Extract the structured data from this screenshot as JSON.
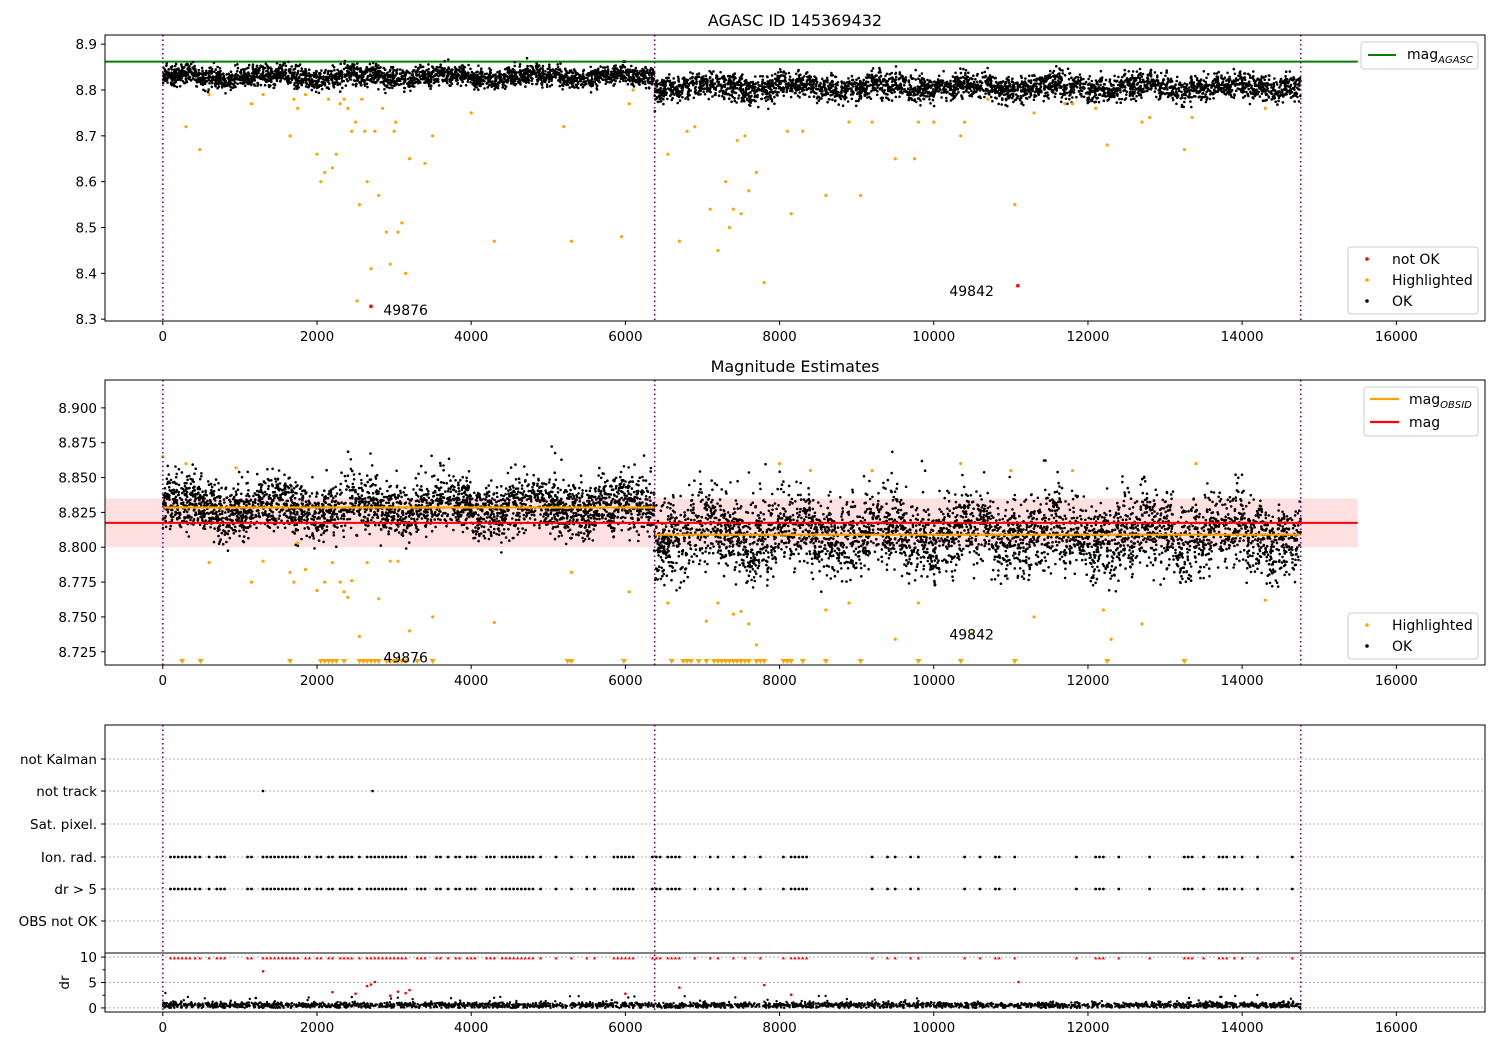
{
  "colors": {
    "ok": "#000000",
    "highlighted": "#ffa500",
    "not_ok": "#ff0000",
    "agasc_line": "#008000",
    "mag_line": "#ff0000",
    "obsid_line": "#ffa500",
    "band": "#ffcccc",
    "separator": "#800080",
    "flag_grid": "#b0b0b0"
  },
  "chart_data": [
    {
      "id": "agasc",
      "type": "scatter",
      "title": "AGASC ID 145369432",
      "xlim": [
        -750,
        17150
      ],
      "ylim": [
        8.296,
        8.92
      ],
      "xticks": [
        0,
        2000,
        4000,
        6000,
        8000,
        10000,
        12000,
        14000,
        16000
      ],
      "yticks": [
        8.3,
        8.4,
        8.5,
        8.6,
        8.7,
        8.8,
        8.9
      ],
      "ytick_decimals": 1,
      "obs_boundaries": [
        0,
        6380,
        14760
      ],
      "hline": {
        "name": "mag_AGASC",
        "y": 8.862,
        "x": [
          -750,
          15500
        ]
      },
      "legend_lines": [
        {
          "label": "mag",
          "sub": "AGASC",
          "color": "#008000"
        }
      ],
      "legend_points": [
        {
          "label": "not OK",
          "color": "#ff0000"
        },
        {
          "label": "Highlighted",
          "color": "#ffa500"
        },
        {
          "label": "OK",
          "color": "#000000"
        }
      ],
      "series": [
        {
          "name": "OK",
          "kind": "ok",
          "segments": [
            {
              "x0": 0,
              "x1": 6380,
              "center": 8.829,
              "spread": 0.011,
              "n": 2600,
              "seed": 3
            },
            {
              "x0": 6380,
              "x1": 14760,
              "center": 8.807,
              "spread": 0.014,
              "n": 3200,
              "seed": 7
            }
          ]
        },
        {
          "name": "Highlighted",
          "kind": "outliers",
          "seed": 11,
          "x": [
            300,
            480,
            600,
            1150,
            1300,
            1650,
            1700,
            1750,
            1850,
            2000,
            2050,
            2100,
            2150,
            2200,
            2250,
            2300,
            2350,
            2400,
            2450,
            2500,
            2520,
            2550,
            2580,
            2620,
            2650,
            2700,
            2750,
            2800,
            2850,
            2900,
            2950,
            3000,
            3020,
            3050,
            3100,
            3150,
            3200,
            3400,
            3500,
            4000,
            4300,
            5200,
            5300,
            5950,
            6050,
            6100,
            6550,
            6700,
            6800,
            6900,
            7100,
            7200,
            7300,
            7350,
            7400,
            7450,
            7500,
            7550,
            7600,
            7700,
            7800,
            8100,
            8150,
            8300,
            8600,
            8900,
            9050,
            9200,
            9500,
            9750,
            9800,
            10000,
            10350,
            10400,
            10700,
            11050,
            11300,
            11700,
            11800,
            12100,
            12250,
            12700,
            12800,
            13250,
            13350,
            14300
          ],
          "y": [
            8.72,
            8.67,
            8.79,
            8.77,
            8.79,
            8.7,
            8.78,
            8.76,
            8.79,
            8.66,
            8.6,
            8.62,
            8.78,
            8.63,
            8.66,
            8.77,
            8.78,
            8.76,
            8.71,
            8.73,
            8.34,
            8.55,
            8.78,
            8.71,
            8.6,
            8.41,
            8.71,
            8.57,
            8.76,
            8.49,
            8.42,
            8.71,
            8.73,
            8.49,
            8.51,
            8.4,
            8.65,
            8.64,
            8.7,
            8.75,
            8.47,
            8.72,
            8.47,
            8.48,
            8.77,
            8.8,
            8.66,
            8.47,
            8.71,
            8.72,
            8.54,
            8.45,
            8.6,
            8.5,
            8.54,
            8.69,
            8.53,
            8.7,
            8.58,
            8.62,
            8.38,
            8.71,
            8.53,
            8.71,
            8.57,
            8.73,
            8.57,
            8.73,
            8.65,
            8.65,
            8.73,
            8.73,
            8.7,
            8.73,
            8.78,
            8.55,
            8.75,
            8.77,
            8.77,
            8.76,
            8.68,
            8.73,
            8.74,
            8.67,
            8.74,
            8.76
          ]
        },
        {
          "name": "not OK",
          "kind": "points",
          "x": [
            2700,
            11090
          ],
          "y": [
            8.328,
            8.373
          ]
        }
      ],
      "annotations": [
        {
          "text": "49876",
          "x": 2900,
          "y": 8.32
        },
        {
          "text": "49842",
          "x": 10280,
          "y": 8.362
        }
      ]
    },
    {
      "id": "estimates",
      "type": "scatter",
      "title": "Magnitude Estimates",
      "xlim": [
        -750,
        17150
      ],
      "ylim": [
        8.7155,
        8.92
      ],
      "xticks": [
        0,
        2000,
        4000,
        6000,
        8000,
        10000,
        12000,
        14000,
        16000
      ],
      "yticks": [
        8.725,
        8.75,
        8.775,
        8.8,
        8.825,
        8.85,
        8.875,
        8.9
      ],
      "ytick_decimals": 3,
      "obs_boundaries": [
        0,
        6380,
        14760
      ],
      "band": {
        "y0": 8.8,
        "y1": 8.835,
        "x": [
          -750,
          15500
        ]
      },
      "mag_line": {
        "name": "mag",
        "y": 8.8175,
        "x": [
          -750,
          15500
        ]
      },
      "obsid_lines": [
        {
          "x0": 0,
          "x1": 6380,
          "y": 8.8285
        },
        {
          "x0": 6380,
          "x1": 14760,
          "y": 8.809
        }
      ],
      "legend_lines": [
        {
          "label": "mag",
          "sub": "OBSID",
          "color": "#ffa500"
        },
        {
          "label": "mag",
          "sub": "",
          "color": "#ff0000"
        }
      ],
      "legend_points": [
        {
          "label": "Highlighted",
          "color": "#ffa500"
        },
        {
          "label": "OK",
          "color": "#000000"
        }
      ],
      "series": [
        {
          "name": "OK",
          "kind": "ok",
          "segments": [
            {
              "x0": 0,
              "x1": 6380,
              "center": 8.8285,
              "spread": 0.0095,
              "n": 3000,
              "seed": 5
            },
            {
              "x0": 6380,
              "x1": 14760,
              "center": 8.809,
              "spread": 0.0135,
              "n": 3800,
              "seed": 9
            }
          ]
        },
        {
          "name": "Highlighted",
          "kind": "outliers",
          "seed": 13,
          "x": [
            0,
            300,
            600,
            950,
            1150,
            1300,
            1650,
            1700,
            1750,
            1850,
            2000,
            2100,
            2200,
            2300,
            2350,
            2400,
            2450,
            2550,
            2650,
            2800,
            2950,
            3050,
            3200,
            3500,
            4300,
            5300,
            6050,
            6550,
            7050,
            7200,
            7400,
            7500,
            7600,
            7700,
            8000,
            8400,
            8600,
            8900,
            9200,
            9500,
            9800,
            10350,
            10500,
            11000,
            11300,
            11800,
            12200,
            12300,
            12700,
            13400,
            14300
          ],
          "y": [
            8.865,
            8.86,
            8.789,
            8.857,
            8.775,
            8.79,
            8.782,
            8.775,
            8.803,
            8.784,
            8.769,
            8.775,
            8.789,
            8.775,
            8.768,
            8.764,
            8.776,
            8.736,
            8.789,
            8.763,
            8.79,
            8.79,
            8.74,
            8.75,
            8.746,
            8.782,
            8.768,
            8.76,
            8.747,
            8.76,
            8.752,
            8.754,
            8.745,
            8.73,
            8.86,
            8.855,
            8.755,
            8.76,
            8.855,
            8.734,
            8.76,
            8.86,
            8.738,
            8.855,
            8.75,
            8.855,
            8.755,
            8.734,
            8.745,
            8.86,
            8.762
          ]
        },
        {
          "name": "Highlighted (clipped)",
          "kind": "clipped",
          "x": [
            250,
            490,
            1650,
            2050,
            2100,
            2150,
            2200,
            2250,
            2350,
            2550,
            2600,
            2650,
            2700,
            2750,
            2800,
            2900,
            2950,
            3000,
            3050,
            3100,
            3150,
            3300,
            3500,
            5250,
            5300,
            5980,
            6600,
            6750,
            6800,
            6850,
            6950,
            7050,
            7150,
            7200,
            7250,
            7300,
            7350,
            7400,
            7450,
            7500,
            7550,
            7600,
            7700,
            7750,
            7800,
            8050,
            8100,
            8150,
            8300,
            8600,
            9050,
            9800,
            10350,
            11050,
            12250,
            13250
          ]
        }
      ],
      "annotations": [
        {
          "text": "49876",
          "x": 2900,
          "y": 8.721
        },
        {
          "text": "49842",
          "x": 10280,
          "y": 8.7375
        }
      ]
    },
    {
      "id": "flags",
      "type": "scatter",
      "categories": [
        "not Kalman",
        "not track",
        "Sat. pixel.",
        "Ion. rad.",
        "dr > 5",
        "OBS not OK"
      ],
      "xlim": [
        -750,
        17150
      ],
      "obs_boundaries": [
        0,
        6380,
        14760
      ],
      "flag_x": [
        100,
        150,
        200,
        250,
        300,
        350,
        420,
        480,
        600,
        700,
        750,
        800,
        1100,
        1150,
        1300,
        1350,
        1400,
        1450,
        1500,
        1550,
        1600,
        1650,
        1700,
        1750,
        1850,
        1900,
        2000,
        2050,
        2150,
        2200,
        2300,
        2350,
        2400,
        2450,
        2550,
        2650,
        2700,
        2750,
        2800,
        2850,
        2900,
        2950,
        3000,
        3050,
        3100,
        3150,
        3300,
        3350,
        3400,
        3550,
        3600,
        3700,
        3800,
        3850,
        3950,
        4000,
        4050,
        4200,
        4250,
        4300,
        4400,
        4450,
        4500,
        4550,
        4600,
        4650,
        4700,
        4750,
        4800,
        4900,
        5100,
        5300,
        5500,
        5600,
        5850,
        5900,
        5950,
        6000,
        6050,
        6100,
        6350,
        6400,
        6450,
        6550,
        6600,
        6650,
        6700,
        6900,
        7100,
        7200,
        7400,
        7550,
        7750,
        8050,
        8150,
        8200,
        8250,
        8300,
        8350,
        9200,
        9400,
        9500,
        9700,
        9800,
        10400,
        10600,
        10800,
        10850,
        11050,
        11850,
        12100,
        12150,
        12200,
        12400,
        12800,
        13250,
        13300,
        13350,
        13500,
        13700,
        13750,
        13800,
        13900,
        14000,
        14200,
        14650
      ],
      "not_track_x": [
        1300,
        2720
      ],
      "dr": {
        "ylabel": "dr",
        "ylim": [
          -0.8,
          10.8
        ],
        "yticks": [
          0,
          5,
          10
        ],
        "baseline_center": 0.55,
        "baseline_spread": 0.28,
        "baseline_n": 2600,
        "baseline_seed": 21,
        "red_extra_x": [
          1300,
          2200,
          2500,
          2650,
          2700,
          2750,
          2950,
          3050,
          3150,
          3200,
          6000,
          6700,
          7800,
          8150,
          11100
        ],
        "red_extra_y": [
          7.2,
          3.1,
          2.8,
          4.3,
          4.6,
          5.1,
          2.4,
          3.2,
          2.9,
          3.5,
          2.8,
          4.0,
          4.5,
          2.6,
          5.1
        ]
      }
    }
  ]
}
